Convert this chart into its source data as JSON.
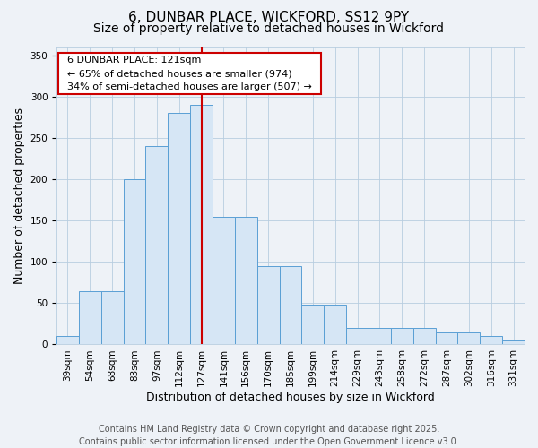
{
  "title_line1": "6, DUNBAR PLACE, WICKFORD, SS12 9PY",
  "title_line2": "Size of property relative to detached houses in Wickford",
  "xlabel": "Distribution of detached houses by size in Wickford",
  "ylabel": "Number of detached properties",
  "categories": [
    "39sqm",
    "54sqm",
    "68sqm",
    "83sqm",
    "97sqm",
    "112sqm",
    "127sqm",
    "141sqm",
    "156sqm",
    "170sqm",
    "185sqm",
    "199sqm",
    "214sqm",
    "229sqm",
    "243sqm",
    "258sqm",
    "272sqm",
    "287sqm",
    "302sqm",
    "316sqm",
    "331sqm"
  ],
  "histogram_data": [
    10,
    65,
    65,
    200,
    240,
    280,
    290,
    155,
    155,
    95,
    95,
    48,
    48,
    20,
    20,
    20,
    20,
    15,
    15,
    10,
    5
  ],
  "bar_color": "#d6e6f5",
  "bar_edge_color": "#5a9fd4",
  "vline_index": 6,
  "vline_color": "#cc0000",
  "annotation_title": "6 DUNBAR PLACE: 121sqm",
  "annotation_line2": "← 65% of detached houses are smaller (974)",
  "annotation_line3": "34% of semi-detached houses are larger (507) →",
  "annotation_box_color": "#ffffff",
  "annotation_box_edge": "#cc0000",
  "ylim": [
    0,
    360
  ],
  "yticks": [
    0,
    50,
    100,
    150,
    200,
    250,
    300,
    350
  ],
  "footer_line1": "Contains HM Land Registry data © Crown copyright and database right 2025.",
  "footer_line2": "Contains public sector information licensed under the Open Government Licence v3.0.",
  "background_color": "#eef2f7",
  "plot_background": "#eef2f7",
  "title_fontsize": 11,
  "subtitle_fontsize": 10,
  "axis_label_fontsize": 9,
  "tick_fontsize": 7.5,
  "footer_fontsize": 7,
  "annotation_fontsize": 8
}
